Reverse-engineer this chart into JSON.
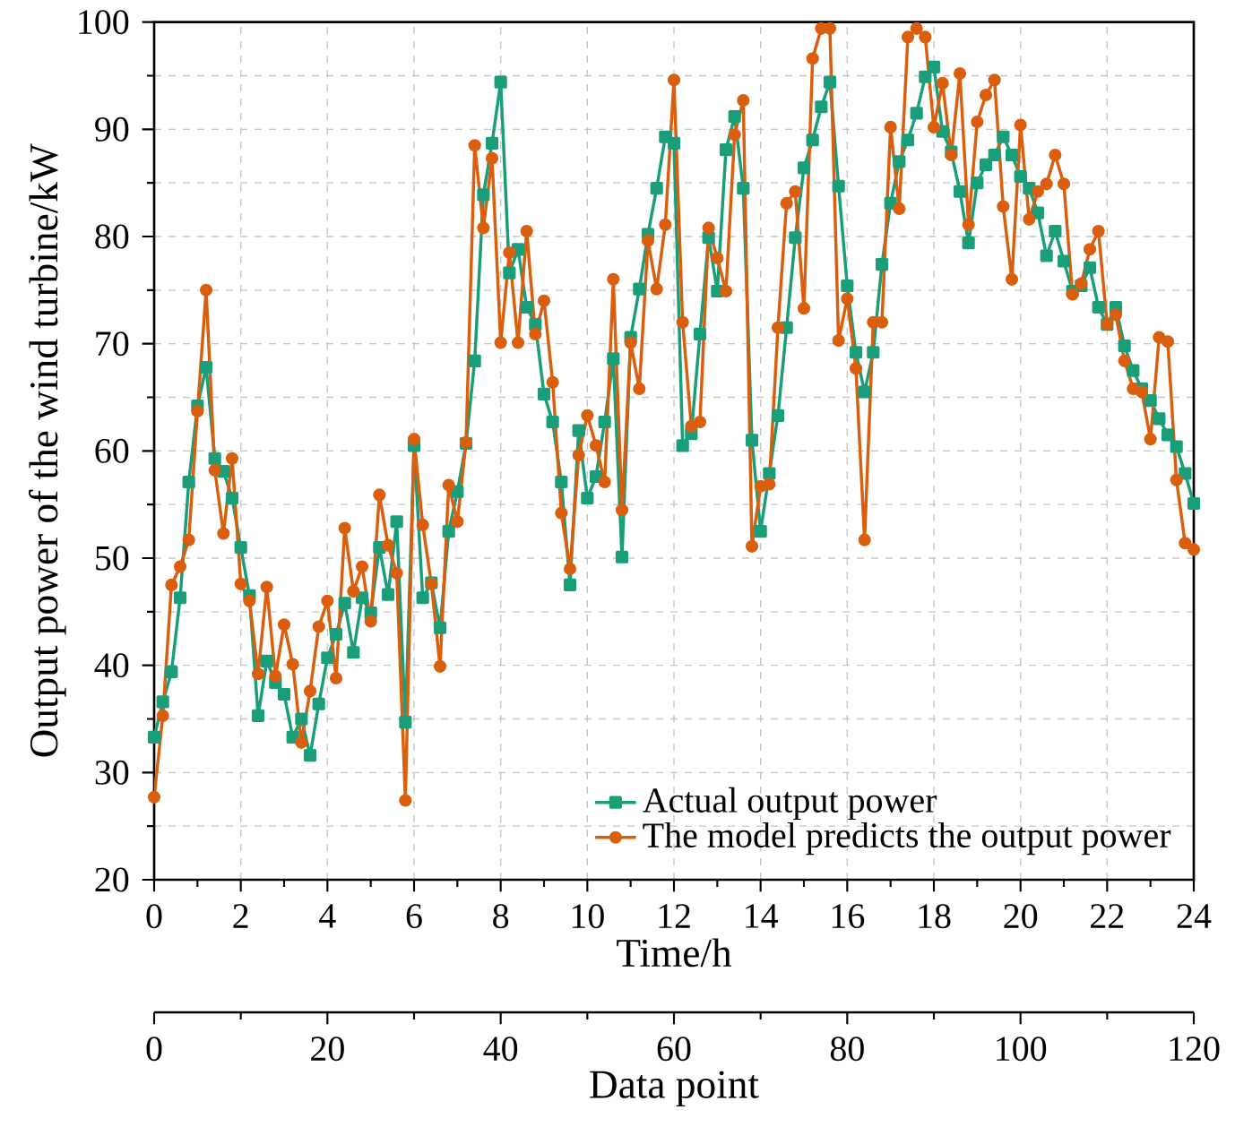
{
  "chart_data": {
    "type": "line",
    "xlabel": "Time/h",
    "ylabel": "Output power of the wind turbine/kW",
    "x2label": "Data point",
    "xlim": [
      0,
      24
    ],
    "xticks": [
      0,
      2,
      4,
      6,
      8,
      10,
      12,
      14,
      16,
      18,
      20,
      22,
      24
    ],
    "ylim": [
      20,
      100
    ],
    "yticks": [
      20,
      30,
      40,
      50,
      60,
      70,
      80,
      90,
      100
    ],
    "x2lim": [
      0,
      120
    ],
    "x2ticks": [
      0,
      20,
      40,
      60,
      80,
      100,
      120
    ],
    "grid": true,
    "legend": "bottom right",
    "line_style": "solid",
    "x": [
      0,
      0.2,
      0.4,
      0.6,
      0.8,
      1,
      1.2,
      1.4,
      1.6,
      1.8,
      2,
      2.2,
      2.4,
      2.6,
      2.8,
      3,
      3.2,
      3.4,
      3.6,
      3.8,
      4,
      4.2,
      4.4,
      4.6,
      4.8,
      5,
      5.2,
      5.4,
      5.6,
      5.8,
      6,
      6.2,
      6.4,
      6.6,
      6.8,
      7,
      7.2,
      7.4,
      7.6,
      7.8,
      8,
      8.2,
      8.4,
      8.6,
      8.8,
      9,
      9.2,
      9.4,
      9.6,
      9.8,
      10,
      10.2,
      10.4,
      10.6,
      10.8,
      11,
      11.2,
      11.4,
      11.6,
      11.8,
      12,
      12.2,
      12.4,
      12.6,
      12.8,
      13,
      13.2,
      13.4,
      13.6,
      13.8,
      14,
      14.2,
      14.4,
      14.6,
      14.8,
      15,
      15.2,
      15.4,
      15.6,
      15.8,
      16,
      16.2,
      16.4,
      16.6,
      16.8,
      17,
      17.2,
      17.4,
      17.6,
      17.8,
      18,
      18.2,
      18.4,
      18.6,
      18.8,
      19,
      19.2,
      19.4,
      19.6,
      19.8,
      20,
      20.2,
      20.4,
      20.6,
      20.8,
      21,
      21.2,
      21.4,
      21.6,
      21.8,
      22,
      22.2,
      22.4,
      22.6,
      22.8,
      23,
      23.2,
      23.4,
      23.6,
      23.8,
      24
    ],
    "series": [
      {
        "name": "Actual output power",
        "color": "#1a9e7a",
        "marker": "square",
        "values": [
          33.3,
          36.6,
          39.4,
          46.3,
          57.1,
          64.2,
          67.8,
          59.3,
          58.1,
          55.6,
          51.0,
          46.5,
          35.3,
          40.4,
          38.4,
          37.3,
          33.3,
          35.0,
          31.6,
          36.4,
          40.7,
          42.9,
          45.8,
          41.2,
          46.3,
          44.9,
          51.0,
          46.6,
          53.4,
          34.7,
          60.5,
          46.3,
          47.7,
          43.5,
          52.5,
          56.2,
          60.7,
          68.4,
          83.9,
          88.7,
          94.4,
          76.6,
          78.8,
          73.4,
          71.8,
          65.3,
          62.7,
          57.1,
          47.5,
          61.9,
          55.6,
          57.6,
          62.7,
          68.6,
          50.1,
          70.6,
          75.1,
          80.2,
          84.5,
          89.3,
          88.7,
          60.5,
          61.6,
          70.9,
          79.9,
          74.9,
          88.1,
          91.2,
          84.5,
          61.0,
          52.5,
          57.9,
          63.3,
          71.5,
          79.9,
          86.4,
          89.0,
          92.1,
          94.4,
          84.7,
          75.4,
          69.2,
          65.5,
          69.2,
          77.4,
          83.1,
          87.0,
          89.0,
          91.5,
          94.9,
          95.8,
          89.8,
          87.9,
          84.2,
          79.4,
          85.0,
          86.7,
          87.6,
          89.3,
          87.6,
          85.6,
          84.5,
          82.2,
          78.2,
          80.5,
          77.7,
          74.9,
          75.4,
          77.1,
          73.4,
          71.8,
          73.4,
          69.8,
          67.5,
          65.8,
          64.7,
          63.0,
          61.5,
          60.4,
          57.9,
          55.1
        ]
      },
      {
        "name": "The model predicts the output power",
        "color": "#d95f0e",
        "marker": "circle",
        "values": [
          27.7,
          35.3,
          47.5,
          49.2,
          51.7,
          63.7,
          75.0,
          58.2,
          52.3,
          59.3,
          47.6,
          46.0,
          39.2,
          47.3,
          39.0,
          43.8,
          40.1,
          32.8,
          37.6,
          43.6,
          46.0,
          38.8,
          52.8,
          46.9,
          49.2,
          44.1,
          55.9,
          51.2,
          48.6,
          27.4,
          61.1,
          53.1,
          47.6,
          39.9,
          56.8,
          53.4,
          60.8,
          88.5,
          80.8,
          87.3,
          70.1,
          78.5,
          70.1,
          80.5,
          70.9,
          74.0,
          66.4,
          54.2,
          49.0,
          59.6,
          63.3,
          60.5,
          57.1,
          76.0,
          54.5,
          70.1,
          65.8,
          79.6,
          75.1,
          81.1,
          94.6,
          72.0,
          62.3,
          62.7,
          80.8,
          78.0,
          74.9,
          89.5,
          92.7,
          51.1,
          56.7,
          56.9,
          71.5,
          83.1,
          84.2,
          73.3,
          96.6,
          99.4,
          99.4,
          70.3,
          74.2,
          67.7,
          51.7,
          72.0,
          72.0,
          90.2,
          82.6,
          98.6,
          99.4,
          98.6,
          90.2,
          94.3,
          87.6,
          95.2,
          81.1,
          90.7,
          93.2,
          94.6,
          82.8,
          76.0,
          90.4,
          81.6,
          84.2,
          84.9,
          87.6,
          84.9,
          74.6,
          75.6,
          78.8,
          80.5,
          71.8,
          72.7,
          68.4,
          65.8,
          65.5,
          61.1,
          70.6,
          70.2,
          57.3,
          51.4,
          50.8
        ]
      }
    ]
  }
}
